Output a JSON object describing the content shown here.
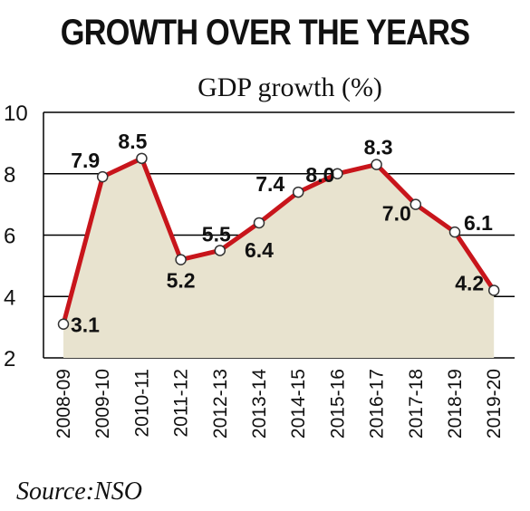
{
  "chart_data": {
    "type": "line",
    "title": "GROWTH OVER THE YEARS",
    "subtitle": "GDP growth (%)",
    "source": "Source:NSO",
    "categories": [
      "2008-09",
      "2009-10",
      "2010-11",
      "2011-12",
      "2012-13",
      "2013-14",
      "2014-15",
      "2015-16",
      "2016-17",
      "2017-18",
      "2018-19",
      "2019-20"
    ],
    "series": [
      {
        "values": [
          3.1,
          7.9,
          8.5,
          5.2,
          5.5,
          6.4,
          7.4,
          8.0,
          8.3,
          7.0,
          6.1,
          4.2
        ]
      }
    ],
    "data_labels": [
      "3.1",
      "7.9",
      "8.5",
      "5.2",
      "5.5",
      "6.4",
      "7.4",
      "8.0",
      "8.3",
      "7.0",
      "6.1",
      "4.2"
    ],
    "yticks": [
      "2",
      "4",
      "6",
      "8",
      "10"
    ],
    "ylim": [
      2,
      10
    ],
    "grid": true,
    "colors": {
      "line": "#c8151b",
      "area": "#e8e3cf",
      "marker_fill": "#ffffff",
      "grid": "#000000"
    }
  }
}
